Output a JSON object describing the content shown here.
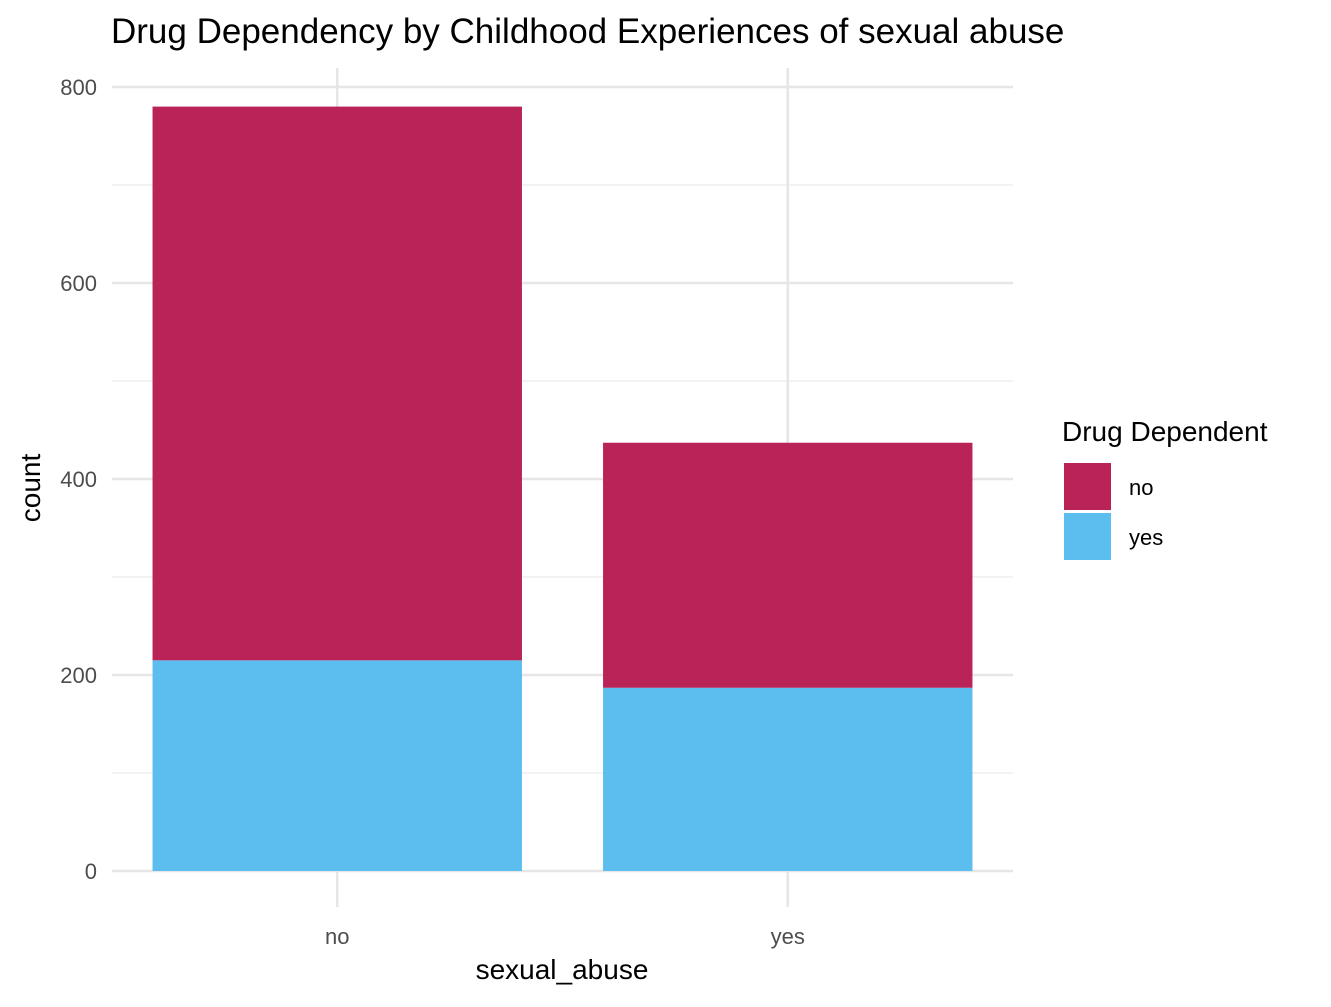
{
  "chart_data": {
    "type": "bar",
    "stacked": true,
    "title": "Drug Dependency by Childhood Experiences of sexual abuse",
    "xlabel": "sexual_abuse",
    "ylabel": "count",
    "categories": [
      "no",
      "yes"
    ],
    "series": [
      {
        "name": "no",
        "color": "#B92357",
        "values": [
          565,
          250
        ]
      },
      {
        "name": "yes",
        "color": "#5BBEEE",
        "values": [
          215,
          187
        ]
      }
    ],
    "ylim": [
      0,
      800
    ],
    "yticks": [
      "0",
      "200",
      "400",
      "600",
      "800"
    ],
    "grid": true,
    "legend": {
      "title": "Drug Dependent",
      "position": "right",
      "entries": [
        "no",
        "yes"
      ]
    }
  }
}
